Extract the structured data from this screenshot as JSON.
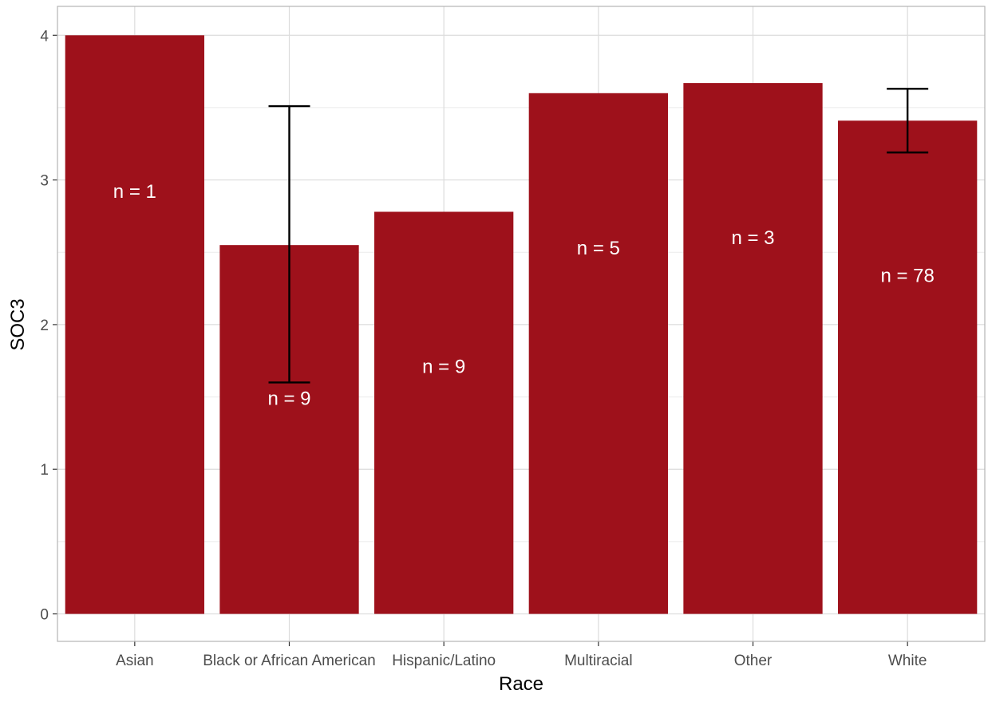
{
  "chart_data": {
    "type": "bar",
    "title": "",
    "xlabel": "Race",
    "ylabel": "SOC3",
    "categories": [
      "Asian",
      "Black or African American",
      "Hispanic/Latino",
      "Multiracial",
      "Other",
      "White"
    ],
    "values": [
      4.0,
      2.55,
      2.78,
      3.6,
      3.67,
      3.41
    ],
    "labels": [
      "n = 1",
      "n = 9",
      "n = 9",
      "n = 5",
      "n = 3",
      "n = 78"
    ],
    "error_bars": [
      null,
      [
        1.6,
        3.51
      ],
      null,
      null,
      null,
      [
        3.19,
        3.63
      ]
    ],
    "label_values": [
      2.92,
      1.49,
      1.71,
      2.53,
      2.6,
      2.34
    ],
    "ylim": [
      -0.19,
      4.2
    ],
    "yticks": [
      0,
      1,
      2,
      3,
      4
    ],
    "grid": true,
    "legend": "none",
    "colors": {
      "bar": "#9e111b",
      "error_bar": "#000000",
      "grid": "#dcdcdc",
      "border": "#b3b3b3"
    }
  }
}
